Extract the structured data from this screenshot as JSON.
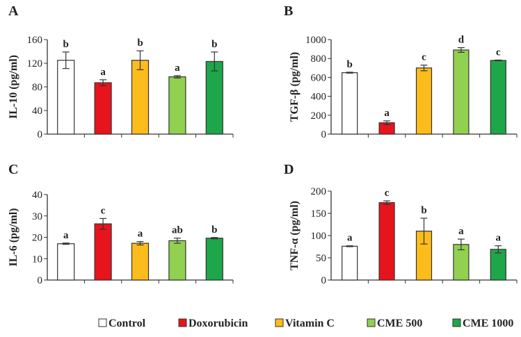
{
  "chart_data": [
    {
      "type": "bar",
      "panel": "A",
      "ylabel": "IL-10 (pg/ml)",
      "ylim": [
        0,
        160
      ],
      "yticks": [
        0,
        40,
        80,
        120,
        160
      ],
      "categories": [
        "Control",
        "Doxorubicin",
        "Vitamin C",
        "CME 500",
        "CME 1000"
      ],
      "values": [
        125,
        87,
        125,
        97,
        123
      ],
      "errors": [
        14,
        5,
        16,
        2,
        16
      ],
      "letters": [
        "b",
        "a",
        "b",
        "a",
        "b"
      ]
    },
    {
      "type": "bar",
      "panel": "B",
      "ylabel": "TGF-β (pg/ml)",
      "ylim": [
        0,
        1000
      ],
      "yticks": [
        0,
        200,
        400,
        600,
        800,
        1000
      ],
      "categories": [
        "Control",
        "Doxorubicin",
        "Vitamin C",
        "CME 500",
        "CME 1000"
      ],
      "values": [
        650,
        120,
        700,
        890,
        780
      ],
      "errors": [
        5,
        20,
        30,
        25,
        4
      ],
      "letters": [
        "b",
        "a",
        "c",
        "d",
        "c"
      ]
    },
    {
      "type": "bar",
      "panel": "C",
      "ylabel": "IL-6 (pg/ml)",
      "ylim": [
        0,
        40
      ],
      "yticks": [
        0,
        10,
        20,
        30,
        40
      ],
      "categories": [
        "Control",
        "Doxorubicin",
        "Vitamin C",
        "CME 500",
        "CME 1000"
      ],
      "values": [
        17,
        26.3,
        17.2,
        18.4,
        19.6
      ],
      "errors": [
        0.3,
        2.5,
        0.8,
        1.2,
        0.3
      ],
      "letters": [
        "a",
        "c",
        "a",
        "ab",
        "b"
      ]
    },
    {
      "type": "bar",
      "panel": "D",
      "ylabel": "TNF-α (pg/ml)",
      "ylim": [
        0,
        200
      ],
      "yticks": [
        0,
        50,
        100,
        150,
        200
      ],
      "categories": [
        "Control",
        "Doxorubicin",
        "Vitamin C",
        "CME 500",
        "CME 1000"
      ],
      "values": [
        76,
        174,
        110,
        80,
        69
      ],
      "errors": [
        1,
        4,
        29,
        12,
        8
      ],
      "letters": [
        "a",
        "c",
        "b",
        "a",
        "a"
      ]
    }
  ],
  "legend": [
    {
      "label": "Control",
      "color": "#ffffff"
    },
    {
      "label": "Doxorubicin",
      "color": "#e8141c"
    },
    {
      "label": "Vitamin C",
      "color": "#fcbc1c"
    },
    {
      "label": "CME 500",
      "color": "#92d050"
    },
    {
      "label": "CME 1000",
      "color": "#1ea64a"
    }
  ]
}
